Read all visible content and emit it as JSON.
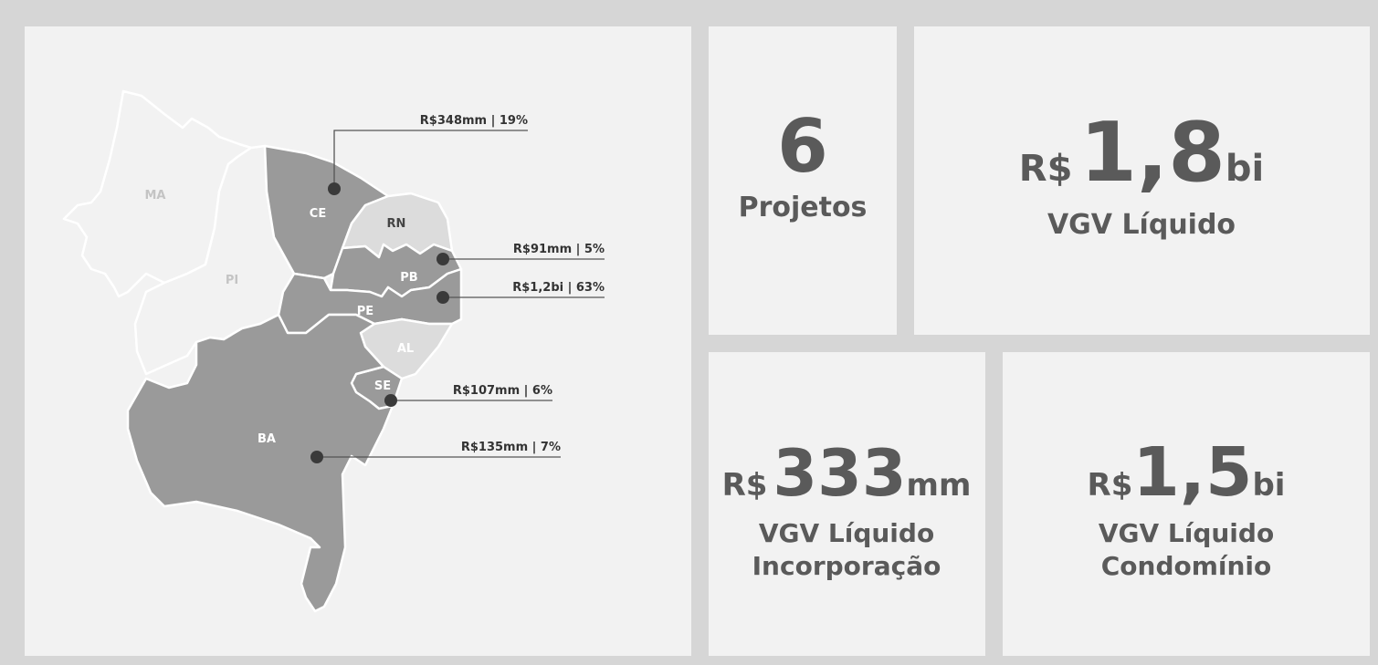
{
  "map": {
    "states": [
      "MA",
      "PI",
      "CE",
      "RN",
      "PB",
      "PE",
      "AL",
      "SE",
      "BA"
    ],
    "callouts": [
      "R$348mm | 19%",
      "R$91mm | 5%",
      "R$1,2bi | 63%",
      "R$107mm | 6%",
      "R$135mm | 7%"
    ]
  },
  "kpis": [
    {
      "value": "6",
      "caption": [
        "Projetos"
      ]
    },
    {
      "prefix": "R$",
      "value": "1,8",
      "suffix": "bi",
      "caption": [
        "VGV Líquido"
      ]
    },
    {
      "prefix": "R$",
      "value": "333",
      "suffix": "mm",
      "caption": [
        "VGV Líquido",
        "Incorporação"
      ]
    },
    {
      "prefix": "R$",
      "value": "1,5",
      "suffix": "bi",
      "caption": [
        "VGV Líquido",
        "Condomínio"
      ]
    }
  ]
}
